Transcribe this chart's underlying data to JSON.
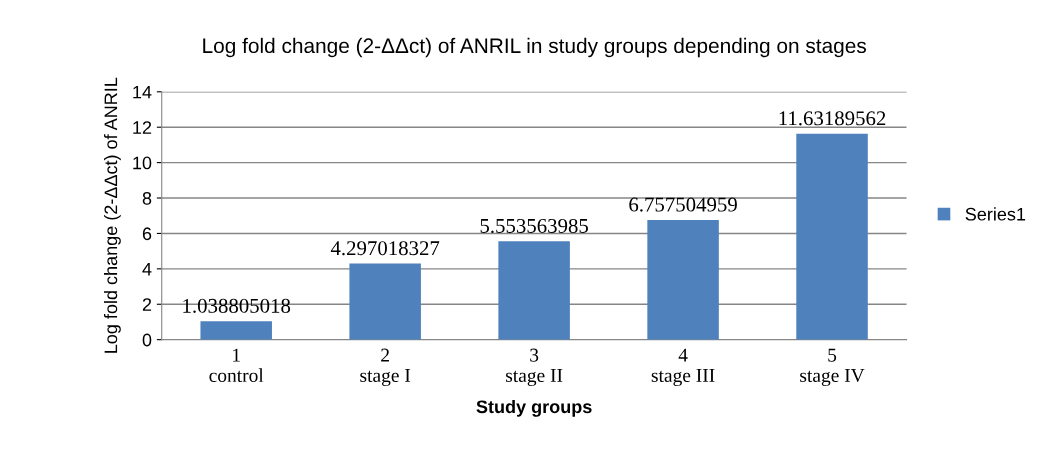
{
  "chart_data": {
    "type": "bar",
    "title": "Log fold change (2-ΔΔct) of ANRIL in study groups depending on stages",
    "xlabel": "Study groups",
    "ylabel": "Log fold change (2-ΔΔct) of ANRIL",
    "categories": [
      "1\ncontrol",
      "2\nstage I",
      "3\nstage II",
      "4\nstage III",
      "5\nstage IV"
    ],
    "series": [
      {
        "name": "Series1",
        "color": "#4f81bd",
        "values": [
          1.038805018,
          4.297018327,
          5.553563985,
          6.757504959,
          11.63189562
        ]
      }
    ],
    "ylim": [
      0,
      14
    ],
    "yticks": [
      0,
      2,
      4,
      6,
      8,
      10,
      12,
      14
    ],
    "grid": "y",
    "legend": "right",
    "data_labels": true
  }
}
